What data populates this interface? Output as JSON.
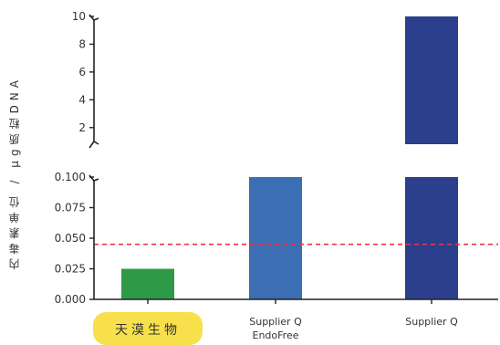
{
  "chart_data": {
    "type": "bar",
    "ylabel": "内毒素单位 / μg质粒DNA",
    "categories": [
      "天漠生物",
      "Supplier Q EndoFree",
      "Supplier Q"
    ],
    "category_lines": [
      [
        "天漠生物"
      ],
      [
        "Supplier Q",
        "EndoFree"
      ],
      [
        "Supplier Q"
      ]
    ],
    "values": [
      0.025,
      0.1,
      10
    ],
    "bar_colors": [
      "#2e9a48",
      "#3c6eb4",
      "#2c3f8c"
    ],
    "highlight_category": 0,
    "highlight_color": "#f7e04b",
    "axis_break": true,
    "lower_axis": {
      "ylim": [
        0,
        0.1
      ],
      "ticks": [
        0,
        0.025,
        0.05,
        0.075,
        0.1
      ],
      "tick_labels": [
        "0.000",
        "0.025",
        "0.050",
        "0.075",
        "0.100"
      ]
    },
    "upper_axis": {
      "ylim": [
        1,
        10
      ],
      "ticks": [
        2,
        4,
        6,
        8,
        10
      ],
      "tick_labels": [
        "2",
        "4",
        "6",
        "8",
        "10"
      ]
    },
    "reference_line": {
      "value": 0.045,
      "color": "#e8334a",
      "style": "dashed"
    },
    "grid": false,
    "legend": "none"
  }
}
